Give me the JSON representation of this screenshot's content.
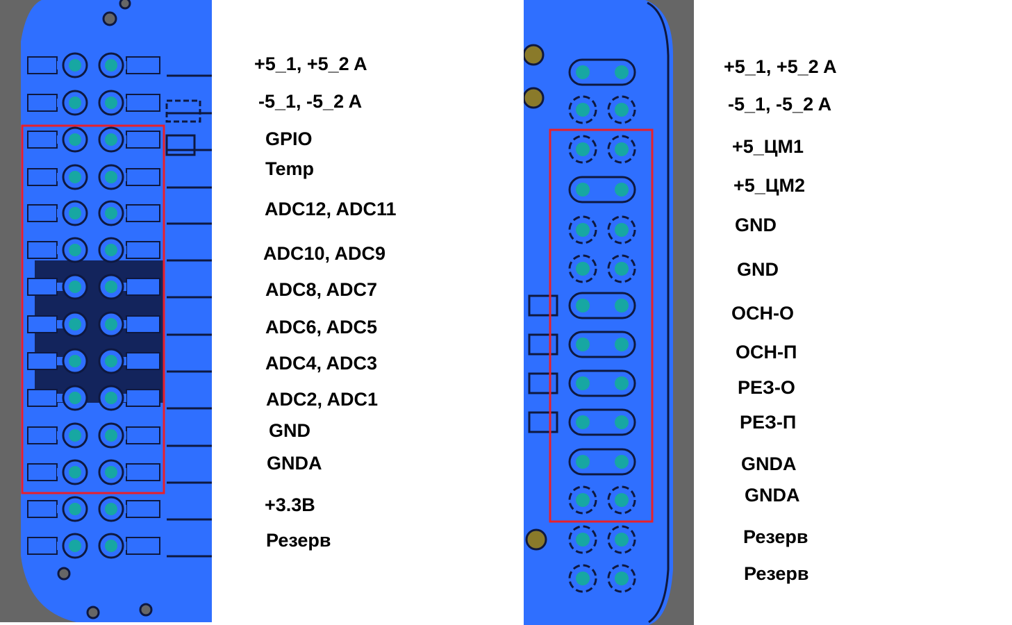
{
  "colors": {
    "copper": "#2f6fff",
    "board": "#666666",
    "pad": "#17a7a2",
    "trace_dark": "#0e1840",
    "highlight": "#e8202a"
  },
  "left_connector": {
    "labels": [
      "+5_1, +5_2 A",
      "-5_1, -5_2  A",
      "GPIO",
      "Temp",
      "ADC12, ADC11",
      "ADC10, ADC9",
      "ADC8, ADC7",
      "ADC6, ADC5",
      "ADC4, ADC3",
      "ADC2, ADC1",
      "GND",
      "GNDA",
      "+3.3B",
      "Резерв"
    ]
  },
  "right_connector": {
    "labels": [
      "+5_1, +5_2 A",
      "-5_1, -5_2  A",
      "+5_ЦМ1",
      "+5_ЦМ2",
      "GND",
      "GND",
      "ОСН-О",
      "ОСН-П",
      "РЕЗ-О",
      "РЕЗ-П",
      "GNDA",
      "GNDA",
      "Резерв",
      "Резерв"
    ]
  }
}
